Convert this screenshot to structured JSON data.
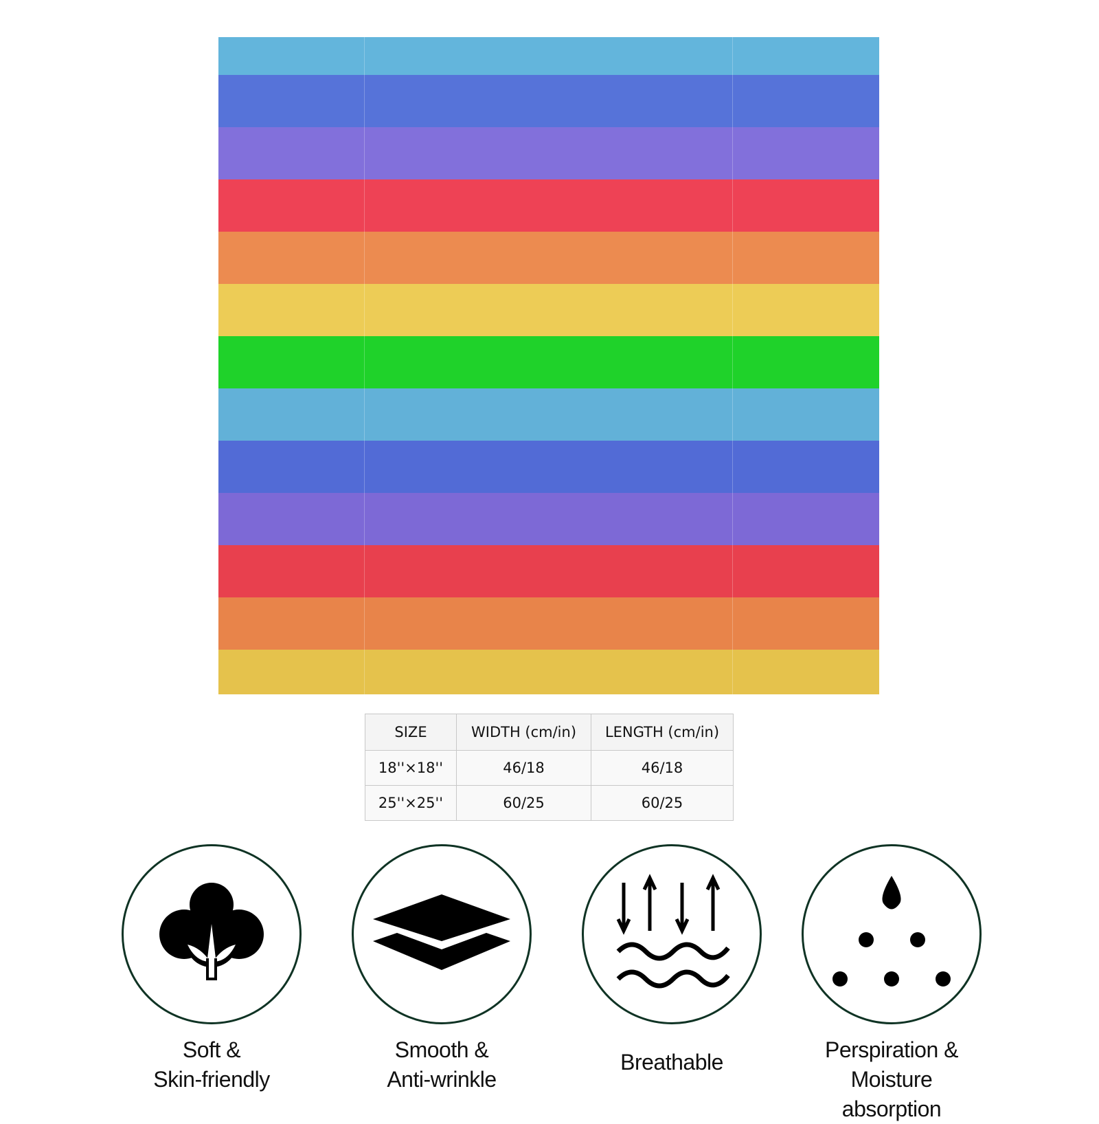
{
  "flag": {
    "stripe_colors": [
      "#63b5dc",
      "#5673d9",
      "#8270db",
      "#ee4255",
      "#ec8b50",
      "#edcc56",
      "#1fd22a",
      "#62b1d8",
      "#526bd6",
      "#7d69d6",
      "#e8404e",
      "#e8844a",
      "#e5c24c"
    ]
  },
  "size_table": {
    "headers": [
      "SIZE",
      "WIDTH (cm/in)",
      "LENGTH (cm/in)"
    ],
    "rows": [
      [
        "18''×18''",
        "46/18",
        "46/18"
      ],
      [
        "25''×25''",
        "60/25",
        "60/25"
      ]
    ]
  },
  "features": [
    {
      "icon": "cotton-icon",
      "line1": "Soft &",
      "line2": "Skin-friendly"
    },
    {
      "icon": "layers-icon",
      "line1": "Smooth &",
      "line2": "Anti-wrinkle"
    },
    {
      "icon": "airflow-icon",
      "line1": "Breathable",
      "line2": ""
    },
    {
      "icon": "droplets-icon",
      "line1": "Perspiration &",
      "line2": "Moisture absorption"
    }
  ]
}
